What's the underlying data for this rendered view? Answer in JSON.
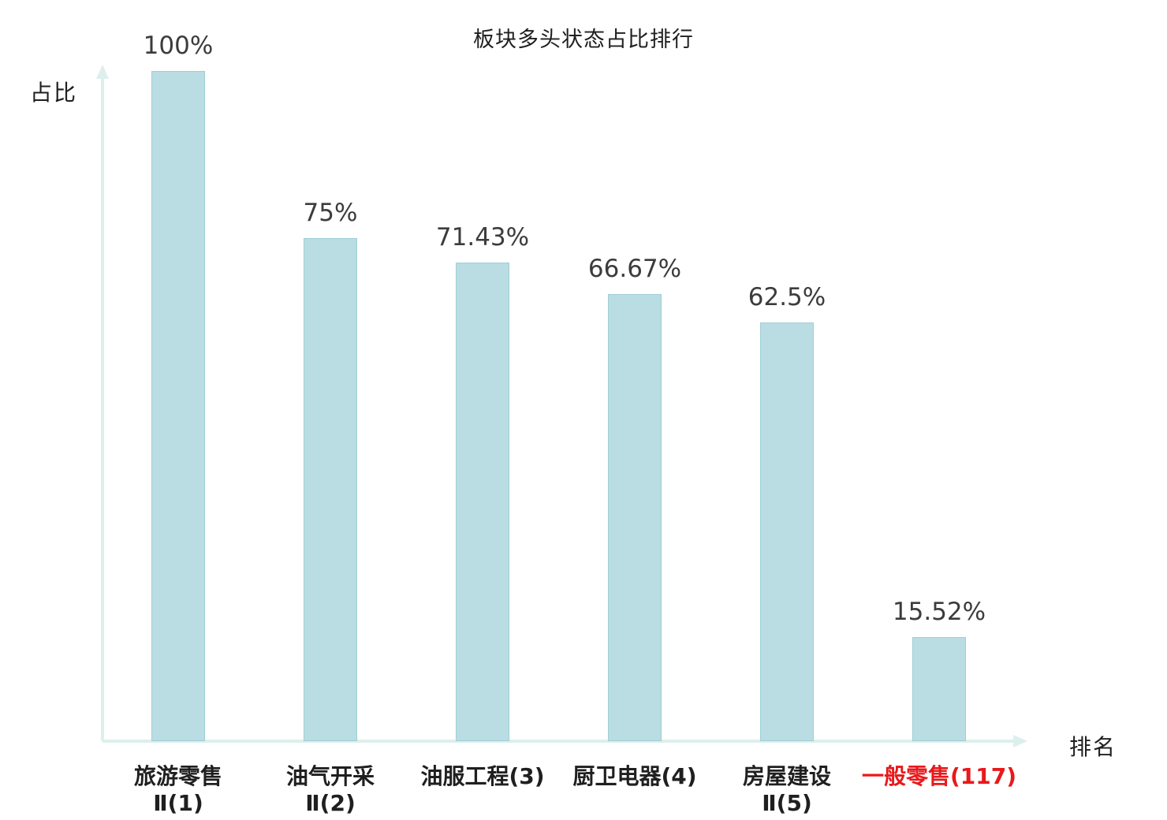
{
  "title": "板块多头状态占比排行",
  "axes": {
    "y_label": "占比",
    "x_label": "排名"
  },
  "colors": {
    "bar_fill": "#b9dde2",
    "bar_border": "#9fced6",
    "axis": "#ddefec",
    "value_text": "#3c3c3c",
    "category_text": "#1f1f1f",
    "highlight_text": "#e8191c"
  },
  "chart_data": {
    "type": "bar",
    "title": "板块多头状态占比排行",
    "xlabel": "排名",
    "ylabel": "占比",
    "ylim": [
      0,
      100
    ],
    "grid": false,
    "legend": "none",
    "categories": [
      "旅游零售Ⅱ(1)",
      "油气开采Ⅱ(2)",
      "油服工程(3)",
      "厨卫电器(4)",
      "房屋建设Ⅱ(5)",
      "一般零售(117)"
    ],
    "category_lines": [
      [
        "旅游零售",
        "Ⅱ(1)"
      ],
      [
        "油气开采",
        "Ⅱ(2)"
      ],
      [
        "油服工程(3)"
      ],
      [
        "厨卫电器(4)"
      ],
      [
        "房屋建设",
        "Ⅱ(5)"
      ],
      [
        "一般零售(117)"
      ]
    ],
    "values": [
      100,
      75,
      71.43,
      66.67,
      62.5,
      15.52
    ],
    "value_labels": [
      "100%",
      "75%",
      "71.43%",
      "66.67%",
      "62.5%",
      "15.52%"
    ],
    "highlight_index": 5
  }
}
